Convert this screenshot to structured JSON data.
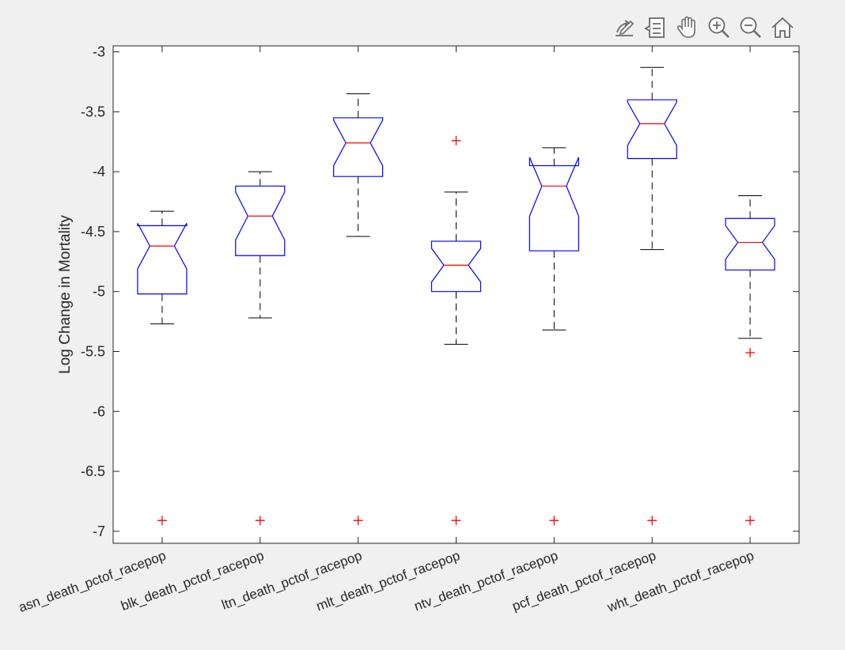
{
  "toolbar": {
    "buttons": [
      {
        "name": "edit-plot-icon"
      },
      {
        "name": "data-tips-icon"
      },
      {
        "name": "pan-hand-icon"
      },
      {
        "name": "zoom-in-icon"
      },
      {
        "name": "zoom-out-icon"
      },
      {
        "name": "home-icon"
      }
    ]
  },
  "colors": {
    "box": "#0000ff",
    "median": "#ff0000",
    "outlier": "#ff0000",
    "whisker": "#000000",
    "axes_bg": "#ffffff",
    "figure_bg": "#f0f0f0"
  },
  "chart_data": {
    "type": "boxplot",
    "notched": true,
    "title": "",
    "xlabel": "",
    "ylabel": "Log Change in Mortality",
    "ylim": [
      -7.1,
      -2.95
    ],
    "yticks": [
      -3,
      -3.5,
      -4,
      -4.5,
      -5,
      -5.5,
      -6,
      -6.5,
      -7
    ],
    "ytick_labels": [
      "-3",
      "-3.5",
      "-4",
      "-4.5",
      "-5",
      "-5.5",
      "-6",
      "-6.5",
      "-7"
    ],
    "categories": [
      "asn_death_pctof_racepop",
      "blk_death_pctof_racepop",
      "ltn_death_pctof_racepop",
      "mlt_death_pctof_racepop",
      "ntv_death_pctof_racepop",
      "pcf_death_pctof_racepop",
      "wht_death_pctof_racepop"
    ],
    "boxes": [
      {
        "whisker_low": -5.27,
        "q1": -5.02,
        "median": -4.62,
        "q3": -4.45,
        "whisker_high": -4.33,
        "notch_low": -4.81,
        "notch_high": -4.43,
        "outliers": [
          -6.91
        ]
      },
      {
        "whisker_low": -5.22,
        "q1": -4.7,
        "median": -4.37,
        "q3": -4.12,
        "whisker_high": -4.0,
        "notch_low": -4.57,
        "notch_high": -4.17,
        "outliers": [
          -6.91
        ]
      },
      {
        "whisker_low": -4.54,
        "q1": -4.04,
        "median": -3.76,
        "q3": -3.55,
        "whisker_high": -3.35,
        "notch_low": -3.95,
        "notch_high": -3.57,
        "outliers": [
          -6.91
        ]
      },
      {
        "whisker_low": -5.44,
        "q1": -5.0,
        "median": -4.78,
        "q3": -4.58,
        "whisker_high": -4.17,
        "notch_low": -4.92,
        "notch_high": -4.64,
        "outliers": [
          -6.91,
          -3.74
        ]
      },
      {
        "whisker_low": -5.32,
        "q1": -4.66,
        "median": -4.12,
        "q3": -3.95,
        "whisker_high": -3.8,
        "notch_low": -4.37,
        "notch_high": -3.88,
        "outliers": [
          -6.91
        ]
      },
      {
        "whisker_low": -4.65,
        "q1": -3.89,
        "median": -3.6,
        "q3": -3.4,
        "whisker_high": -3.13,
        "notch_low": -3.78,
        "notch_high": -3.42,
        "outliers": [
          -6.91
        ]
      },
      {
        "whisker_low": -5.39,
        "q1": -4.82,
        "median": -4.59,
        "q3": -4.39,
        "whisker_high": -4.2,
        "notch_low": -4.73,
        "notch_high": -4.45,
        "outliers": [
          -6.91,
          -5.51
        ]
      }
    ],
    "grid": false,
    "legend": "none"
  }
}
